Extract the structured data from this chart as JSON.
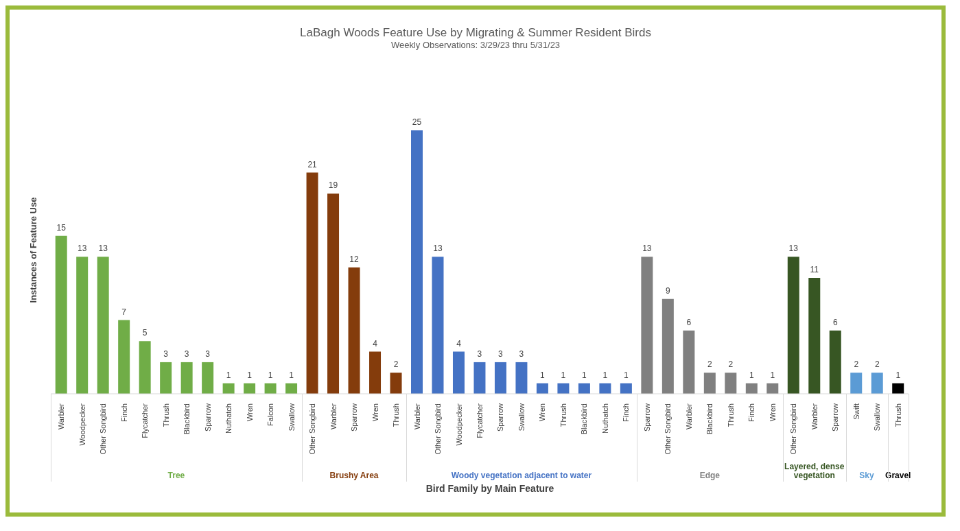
{
  "chart_data": {
    "type": "bar",
    "title": "LaBagh Woods Feature Use by Migrating & Summer Resident Birds",
    "subtitle": "Weekly Observations: 3/29/23 thru 5/31/23",
    "xlabel": "Bird Family by Main Feature",
    "ylabel": "Instances of Feature Use",
    "categories": [
      "Warbler",
      "Woodpecker",
      "Other Songbird",
      "Finch",
      "Flycatcher",
      "Thrush",
      "Blackbird",
      "Sparrow",
      "Nuthatch",
      "Wren",
      "Falcon",
      "Swallow",
      "Other Songbird",
      "Warbler",
      "Sparrow",
      "Wren",
      "Thrush",
      "Warbler",
      "Other Songbird",
      "Woodpecker",
      "Flycatcher",
      "Sparrow",
      "Swallow",
      "Wren",
      "Thrush",
      "Blackbird",
      "Nuthatch",
      "Finch",
      "Sparrow",
      "Other Songbird",
      "Warbler",
      "Blackbird",
      "Thrush",
      "Finch",
      "Wren",
      "Other Songbird",
      "Warbler",
      "Sparrow",
      "Swift",
      "Swallow",
      "Thrush"
    ],
    "stacked": true,
    "data_labels": true,
    "tick_labels": "x",
    "grid": false,
    "series": [
      {
        "name": "Tree",
        "color": "#70ad47",
        "values": [
          15,
          13,
          13,
          7,
          5,
          3,
          3,
          3,
          1,
          1,
          1,
          1,
          null,
          null,
          null,
          null,
          null,
          null,
          null,
          null,
          null,
          null,
          null,
          null,
          null,
          null,
          null,
          null,
          null,
          null,
          null,
          null,
          null,
          null,
          null,
          null,
          null,
          null,
          null,
          null,
          null
        ]
      },
      {
        "name": "Brushy Area",
        "color": "#843c0c",
        "values": [
          null,
          null,
          null,
          null,
          null,
          null,
          null,
          null,
          null,
          null,
          null,
          null,
          21,
          19,
          12,
          4,
          2,
          null,
          null,
          null,
          null,
          null,
          null,
          null,
          null,
          null,
          null,
          null,
          null,
          null,
          null,
          null,
          null,
          null,
          null,
          null,
          null,
          null,
          null,
          null,
          null
        ]
      },
      {
        "name": "Woody vegetation adjacent to water",
        "color": "#4472c4",
        "values": [
          null,
          null,
          null,
          null,
          null,
          null,
          null,
          null,
          null,
          null,
          null,
          null,
          null,
          null,
          null,
          null,
          null,
          25,
          13,
          4,
          3,
          3,
          3,
          1,
          1,
          1,
          1,
          1,
          null,
          null,
          null,
          null,
          null,
          null,
          null,
          null,
          null,
          null,
          null,
          null,
          null
        ]
      },
      {
        "name": "Edge",
        "color": "#808080",
        "values": [
          null,
          null,
          null,
          null,
          null,
          null,
          null,
          null,
          null,
          null,
          null,
          null,
          null,
          null,
          null,
          null,
          null,
          null,
          null,
          null,
          null,
          null,
          null,
          null,
          null,
          null,
          null,
          null,
          13,
          9,
          6,
          2,
          2,
          1,
          1,
          null,
          null,
          null,
          null,
          null,
          null
        ]
      },
      {
        "name": "Layered, dense vegetation",
        "color": "#375623",
        "values": [
          null,
          null,
          null,
          null,
          null,
          null,
          null,
          null,
          null,
          null,
          null,
          null,
          null,
          null,
          null,
          null,
          null,
          null,
          null,
          null,
          null,
          null,
          null,
          null,
          null,
          null,
          null,
          null,
          null,
          null,
          null,
          null,
          null,
          null,
          null,
          13,
          11,
          6,
          null,
          null,
          null
        ]
      },
      {
        "name": "Sky",
        "color": "#5b9bd5",
        "values": [
          null,
          null,
          null,
          null,
          null,
          null,
          null,
          null,
          null,
          null,
          null,
          null,
          null,
          null,
          null,
          null,
          null,
          null,
          null,
          null,
          null,
          null,
          null,
          null,
          null,
          null,
          null,
          null,
          null,
          null,
          null,
          null,
          null,
          null,
          null,
          null,
          null,
          null,
          2,
          2,
          null
        ]
      },
      {
        "name": "Gravel",
        "color": "#000000",
        "values": [
          null,
          null,
          null,
          null,
          null,
          null,
          null,
          null,
          null,
          null,
          null,
          null,
          null,
          null,
          null,
          null,
          null,
          null,
          null,
          null,
          null,
          null,
          null,
          null,
          null,
          null,
          null,
          null,
          null,
          null,
          null,
          null,
          null,
          null,
          null,
          null,
          null,
          null,
          null,
          null,
          1
        ]
      }
    ]
  }
}
